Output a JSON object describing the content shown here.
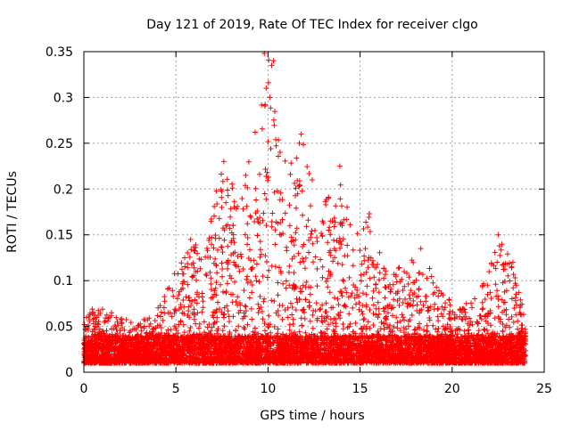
{
  "chart_data": {
    "type": "scatter",
    "title": "Day 121 of 2019, Rate Of TEC Index for receiver clgo",
    "xlabel": "GPS time / hours",
    "ylabel": "ROTI / TECUs",
    "xlim": [
      0,
      25
    ],
    "ylim": [
      0,
      0.35
    ],
    "x_ticks": [
      0,
      5,
      10,
      15,
      20,
      25
    ],
    "x_tick_labels": [
      "0",
      "5",
      "10",
      "15",
      "20",
      "25"
    ],
    "y_ticks": [
      0,
      0.05,
      0.1,
      0.15,
      0.2,
      0.25,
      0.3,
      0.35
    ],
    "y_tick_labels": [
      "0",
      "0.05",
      "0.1",
      "0.15",
      "0.2",
      "0.25",
      "0.3",
      "0.35"
    ],
    "grid": true,
    "marker": "+",
    "marker_color": "#ff0000",
    "x_data_range": [
      0,
      24
    ],
    "baseline_range": [
      0.01,
      0.04
    ],
    "envelope": [
      {
        "x": 0.0,
        "y": 0.07
      },
      {
        "x": 1.0,
        "y": 0.07
      },
      {
        "x": 2.0,
        "y": 0.06
      },
      {
        "x": 3.0,
        "y": 0.055
      },
      {
        "x": 4.0,
        "y": 0.07
      },
      {
        "x": 5.0,
        "y": 0.115
      },
      {
        "x": 5.8,
        "y": 0.145
      },
      {
        "x": 6.5,
        "y": 0.13
      },
      {
        "x": 7.2,
        "y": 0.2
      },
      {
        "x": 7.6,
        "y": 0.23
      },
      {
        "x": 8.5,
        "y": 0.19
      },
      {
        "x": 9.3,
        "y": 0.26
      },
      {
        "x": 9.8,
        "y": 0.35
      },
      {
        "x": 10.2,
        "y": 0.34
      },
      {
        "x": 10.8,
        "y": 0.24
      },
      {
        "x": 11.8,
        "y": 0.26
      },
      {
        "x": 12.5,
        "y": 0.21
      },
      {
        "x": 13.2,
        "y": 0.19
      },
      {
        "x": 13.9,
        "y": 0.225
      },
      {
        "x": 14.5,
        "y": 0.16
      },
      {
        "x": 15.5,
        "y": 0.175
      },
      {
        "x": 16.5,
        "y": 0.115
      },
      {
        "x": 17.5,
        "y": 0.115
      },
      {
        "x": 18.3,
        "y": 0.135
      },
      {
        "x": 19.5,
        "y": 0.085
      },
      {
        "x": 20.5,
        "y": 0.07
      },
      {
        "x": 21.5,
        "y": 0.09
      },
      {
        "x": 22.5,
        "y": 0.15
      },
      {
        "x": 23.3,
        "y": 0.12
      },
      {
        "x": 24.0,
        "y": 0.06
      }
    ],
    "peak_points": [
      {
        "x": 9.8,
        "y": 0.348
      },
      {
        "x": 10.3,
        "y": 0.34
      },
      {
        "x": 10.2,
        "y": 0.335
      },
      {
        "x": 9.9,
        "y": 0.31
      },
      {
        "x": 10.1,
        "y": 0.3
      },
      {
        "x": 9.3,
        "y": 0.262
      },
      {
        "x": 11.8,
        "y": 0.26
      },
      {
        "x": 11.7,
        "y": 0.25
      },
      {
        "x": 7.6,
        "y": 0.23
      },
      {
        "x": 13.9,
        "y": 0.225
      },
      {
        "x": 12.4,
        "y": 0.21
      },
      {
        "x": 7.2,
        "y": 0.198
      },
      {
        "x": 5.8,
        "y": 0.145
      },
      {
        "x": 15.5,
        "y": 0.173
      },
      {
        "x": 18.3,
        "y": 0.135
      },
      {
        "x": 22.5,
        "y": 0.15
      },
      {
        "x": 23.3,
        "y": 0.12
      }
    ]
  }
}
